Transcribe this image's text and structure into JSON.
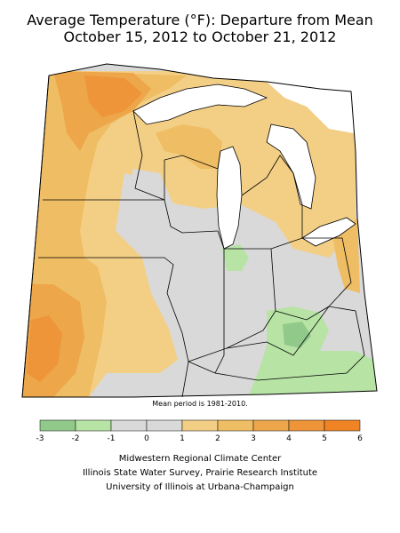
{
  "header": {
    "title_line1": "Average Temperature (°F): Departure from Mean",
    "title_line2": "October 15, 2012 to October 21, 2012"
  },
  "map": {
    "type": "choropleth departure map",
    "region_states": [
      "Minnesota",
      "Iowa",
      "Missouri",
      "Wisconsin",
      "Illinois",
      "Michigan",
      "Indiana",
      "Ohio",
      "Kentucky"
    ],
    "background_color": "#d9d9d9",
    "summary_values": {
      "northwest_minnesota": 4,
      "western_iowa_missouri": 3,
      "central_illinois_indiana": 0,
      "southeast_kentucky": -1,
      "northern_michigan": 2
    }
  },
  "note": "Mean period is 1981-2010.",
  "legend": {
    "ticks": [
      "-3",
      "-2",
      "-1",
      "0",
      "1",
      "2",
      "3",
      "4",
      "5",
      "6"
    ],
    "bins": [
      {
        "range": "-3 to -2",
        "color": "#91c98a"
      },
      {
        "range": "-2 to -1",
        "color": "#b7e3a5"
      },
      {
        "range": "-1 to 0",
        "color": "#d9d9d9"
      },
      {
        "range": "0 to 1",
        "color": "#d9d9d9"
      },
      {
        "range": "1 to 2",
        "color": "#f3cf86"
      },
      {
        "range": "2 to 3",
        "color": "#efbd63"
      },
      {
        "range": "3 to 4",
        "color": "#eda64a"
      },
      {
        "range": "4 to 5",
        "color": "#ee9539"
      },
      {
        "range": "5 to 6",
        "color": "#f08323"
      }
    ]
  },
  "credits": [
    "Midwestern Regional Climate Center",
    "Illinois State Water Survey, Prairie Research Institute",
    "University of Illinois at Urbana-Champaign"
  ]
}
